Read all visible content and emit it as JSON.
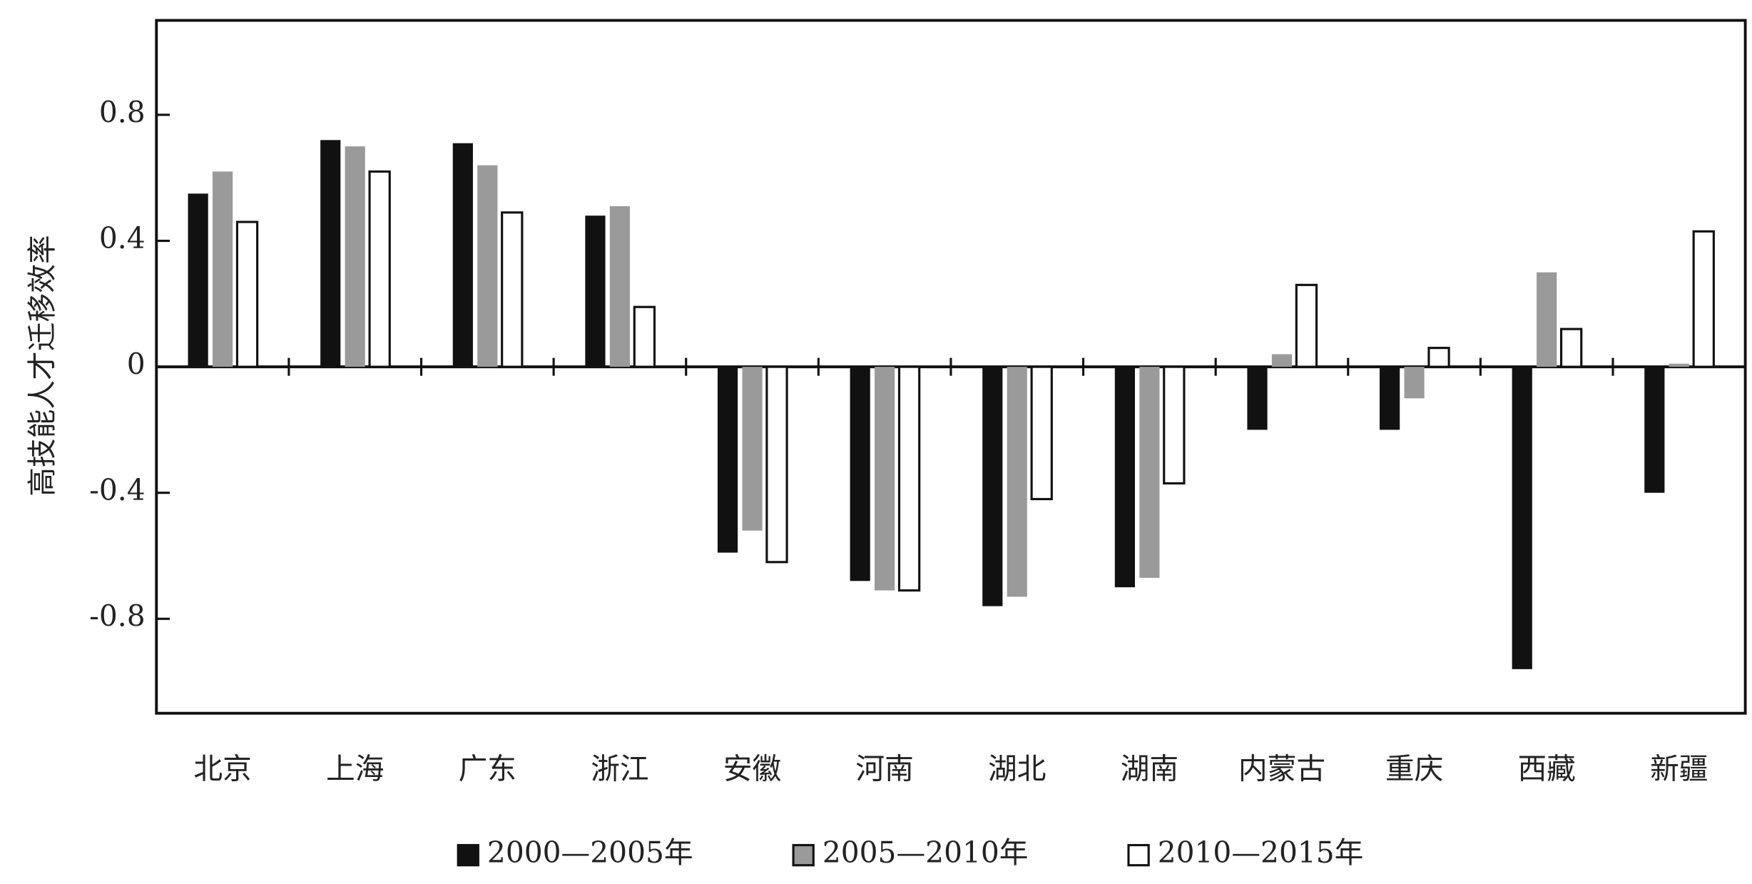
{
  "chart_data": {
    "type": "bar",
    "y_label": "高技能人才迁移效率",
    "categories": [
      "北京",
      "上海",
      "广东",
      "浙江",
      "安徽",
      "河南",
      "湖北",
      "湖南",
      "内蒙古",
      "重庆",
      "西藏",
      "新疆"
    ],
    "series": [
      {
        "name": "2000—2005年",
        "color": "#111111",
        "values": [
          0.55,
          0.72,
          0.71,
          0.48,
          -0.59,
          -0.68,
          -0.76,
          -0.7,
          -0.2,
          -0.2,
          -0.96,
          -0.4
        ]
      },
      {
        "name": "2005—2010年",
        "color": "#9a9a9a",
        "values": [
          0.62,
          0.7,
          0.64,
          0.51,
          -0.52,
          -0.71,
          -0.73,
          -0.67,
          0.04,
          -0.1,
          0.3,
          0.01
        ]
      },
      {
        "name": "2010—2015年",
        "color": "#ffffff",
        "values": [
          0.46,
          0.62,
          0.49,
          0.19,
          -0.62,
          -0.71,
          -0.42,
          -0.37,
          0.26,
          0.06,
          0.12,
          0.43
        ]
      }
    ],
    "ylim": [
      -1.1,
      1.1
    ],
    "yticks": [
      -0.8,
      -0.4,
      0,
      0.4,
      0.8
    ],
    "grid": false,
    "legend": "bottom"
  }
}
